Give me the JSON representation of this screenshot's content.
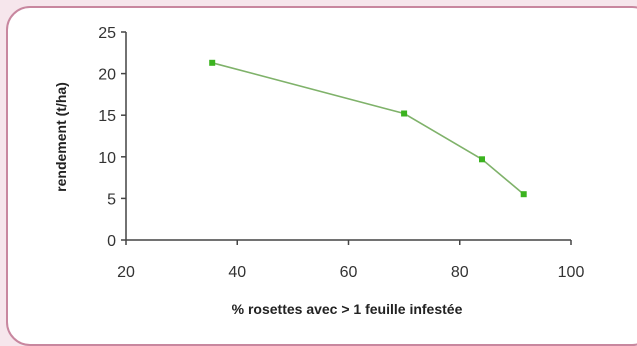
{
  "chart_data": {
    "type": "line",
    "title": "",
    "xlabel": "% rosettes avec > 1 feuille infestée",
    "ylabel": "rendement (t/ha)",
    "xlim": [
      20,
      100
    ],
    "ylim": [
      0,
      25
    ],
    "x_ticks": [
      "20",
      "40",
      "60",
      "80",
      "100"
    ],
    "y_ticks": [
      "0",
      "5",
      "10",
      "15",
      "20",
      "25"
    ],
    "grid": false,
    "legend": "none",
    "series": [
      {
        "x": [
          35.5,
          70,
          84,
          91.5
        ],
        "y": [
          21.3,
          15.2,
          9.7,
          5.5
        ]
      }
    ],
    "colors": {
      "line": "#7fb26a",
      "marker": "#3bb31f",
      "axis": "#444444",
      "frame_border": "#c8879f",
      "background": "#f6e6ec"
    }
  }
}
